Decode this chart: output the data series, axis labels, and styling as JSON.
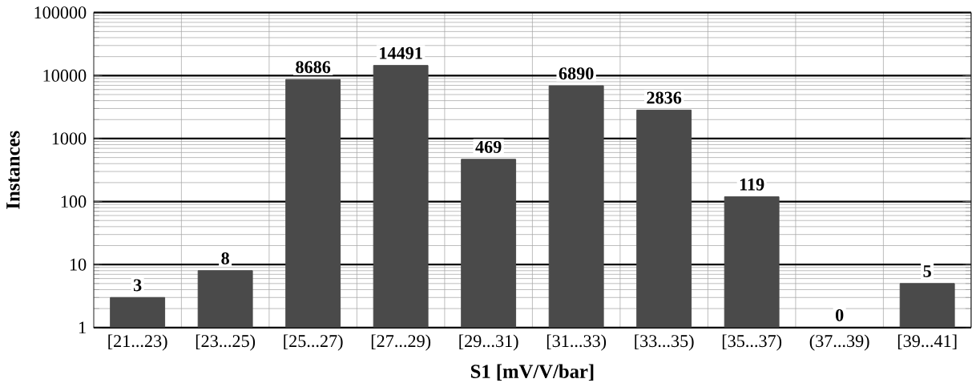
{
  "chart_data": {
    "type": "bar",
    "xlabel": "S1 [mV/V/bar]",
    "ylabel": "Instances",
    "categories": [
      "[21...23)",
      "[23...25)",
      "[25...27)",
      "[27...29)",
      "[29...31)",
      "[31...33)",
      "[33...35)",
      "[35...37)",
      "(37...39)",
      "[39...41]"
    ],
    "values": [
      3,
      8,
      8686,
      14491,
      469,
      6890,
      2836,
      119,
      null,
      5
    ],
    "value_labels": [
      "3",
      "8",
      "8686",
      "14491",
      "469",
      "6890",
      "2836",
      "119",
      "0",
      "5"
    ],
    "color": "#4a4a4a",
    "log": true,
    "ylim": [
      1,
      100000
    ],
    "yticks": [
      1,
      10,
      100,
      1000,
      10000,
      100000
    ],
    "grid": true
  }
}
